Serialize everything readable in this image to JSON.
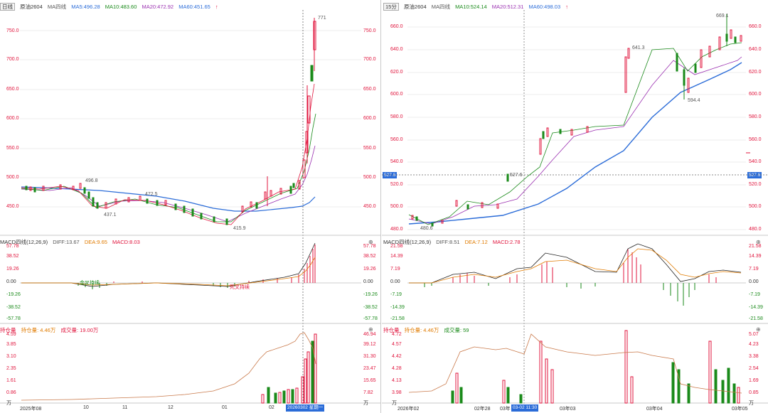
{
  "left": {
    "header": {
      "period": "日线",
      "symbol": "原油2604",
      "ma_title": "MA四线",
      "ma5": "MA5:496.28",
      "ma10": "MA10:483.60",
      "ma20": "MA20:472.92",
      "ma60": "MA60:451.65",
      "arrow": "↑"
    },
    "price_axis": [
      "750.0",
      "700.0",
      "650.0",
      "600.0",
      "550.0",
      "500.0",
      "450.0"
    ],
    "annotations": {
      "high": "771",
      "a1": "496.8",
      "a2": "437.1",
      "a3": "472.5",
      "low": "415.9"
    },
    "macd": {
      "title": "MACD四线(12,26,9)",
      "diff": "DIFF:13.67",
      "dea": "DEA:9.65",
      "macd": "MACD:8.03",
      "axis": [
        "57.78",
        "38.52",
        "19.26",
        "0.00",
        "-19.26",
        "-38.52",
        "-57.78"
      ],
      "labels": {
        "golden": "金叉持续",
        "dead": "死叉持续"
      }
    },
    "vol": {
      "title": "持仓量",
      "oi": "持仓量: 4.46万",
      "volume": "成交量: 19.00万",
      "axis_left": [
        "4.59",
        "3.85",
        "3.10",
        "2.35",
        "1.61",
        "0.86",
        "万"
      ],
      "axis_right": [
        "46.94",
        "39.12",
        "31.30",
        "23.47",
        "15.65",
        "7.82",
        "万"
      ]
    },
    "x_axis": [
      "2025年08",
      "10",
      "11",
      "12",
      "01",
      "02"
    ],
    "cursor_date": "20260302 星期一"
  },
  "right": {
    "header": {
      "period": "15分",
      "symbol": "原油2604",
      "ma_title": "MA四线",
      "ma10": "MA10:524.14",
      "ma20": "MA20:512.31",
      "ma60": "MA60:498.03",
      "arrow": "↑"
    },
    "price_axis": [
      "660.0",
      "640.0",
      "620.0",
      "600.0",
      "580.0",
      "560.0",
      "540.0",
      "520.0",
      "500.0",
      "480.0"
    ],
    "cursor_price": "527.6",
    "annotations": {
      "high": "669.1",
      "a1": "641.3",
      "a2": "594.4",
      "a3": "527.6",
      "low": "480.6"
    },
    "macd": {
      "title": "MACD四线(12,26,9)",
      "diff": "DIFF:8.51",
      "dea": "DEA:7.12",
      "macd": "MACD:2.78",
      "axis": [
        "21.58",
        "14.39",
        "7.19",
        "0.00",
        "-7.19",
        "-14.39",
        "-21.58"
      ]
    },
    "vol": {
      "title": "持仓量",
      "oi": "持仓量: 4.46万",
      "volume": "成交量: 59",
      "axis_left": [
        "4.72",
        "4.57",
        "4.42",
        "4.28",
        "4.13",
        "3.98",
        "万"
      ],
      "axis_right": [
        "5.07",
        "4.23",
        "3.38",
        "2.54",
        "1.69",
        "0.85",
        "万"
      ]
    },
    "x_axis": [
      "2026年02",
      "02年28",
      "03年",
      "03年03",
      "03年04",
      "03年05"
    ],
    "cursor_date": "03-02 11:30"
  }
}
